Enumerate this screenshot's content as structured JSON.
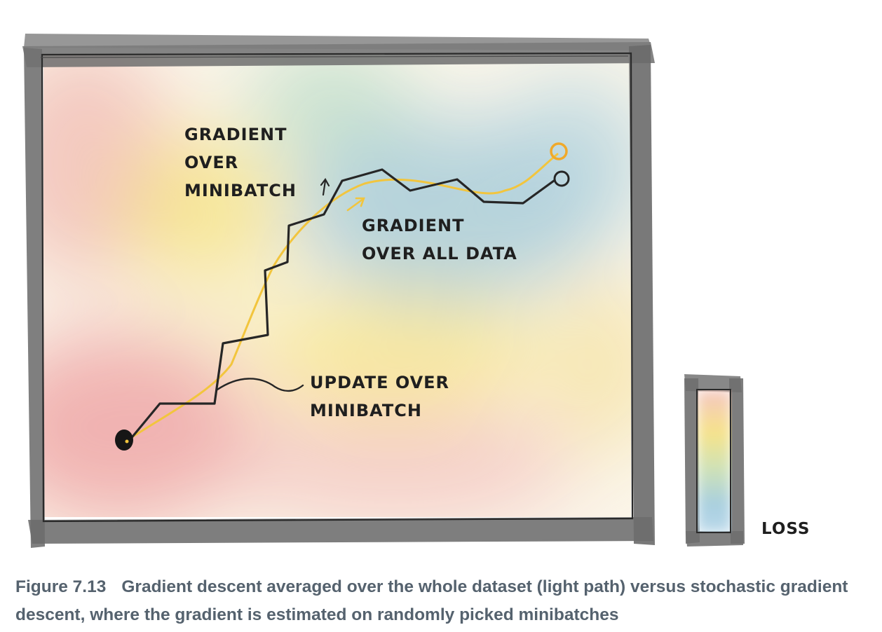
{
  "labels": {
    "minibatch_gradient": [
      "GRADIENT",
      "OVER",
      "MINIBATCH"
    ],
    "full_gradient": [
      "GRADIENT",
      "OVER ALL DATA"
    ],
    "update": [
      "UPDATE OVER",
      "MINIBATCH"
    ],
    "loss": "LOSS"
  },
  "caption": {
    "label": "Figure 7.13",
    "text": "Gradient descent averaged over the whole dataset (light path) versus stochastic gradient descent, where the gradient is estimated on randomly picked minibatches"
  },
  "colors": {
    "frame": "#6e6e6e",
    "sgd_path": "#2b2b2b",
    "gd_path": "#f2c53d",
    "high_loss": "#eeb0ad",
    "mid_loss": "#f6e08f",
    "low_loss": "#a9cdd6"
  }
}
